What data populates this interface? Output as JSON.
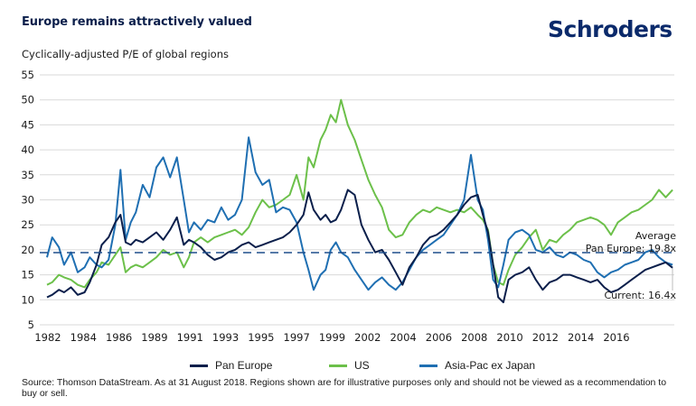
{
  "header": {
    "title": "Europe remains attractively valued",
    "logo": "Schroders",
    "subtitle": "Cyclically-adjusted P/E of global regions"
  },
  "colors": {
    "pan_europe": "#0b1f4b",
    "us": "#6cc04a",
    "asia_pac": "#1f6fb2",
    "grid": "#d9d9d9",
    "average_line": "#1f4e8c"
  },
  "legend": [
    {
      "label": "Pan Europe",
      "series": "pan_europe"
    },
    {
      "label": "US",
      "series": "us"
    },
    {
      "label": "Asia-Pac ex Japan",
      "series": "asia_pac"
    }
  ],
  "footer": {
    "source": "Source: Thomson DataStream. As at 31 August 2018. Regions shown are for illustrative purposes only and should not be viewed as a recommendation to buy or sell."
  },
  "chart_data": {
    "type": "line",
    "title": "Cyclically-adjusted P/E of global regions",
    "xlabel": "",
    "ylabel": "",
    "ylim": [
      5,
      55
    ],
    "yticks": [
      5,
      10,
      15,
      20,
      25,
      30,
      35,
      40,
      45,
      50,
      55
    ],
    "xlim": [
      1982.0,
      2018.7
    ],
    "xtick_labels": [
      "1982",
      "1984",
      "1986",
      "1989",
      "1991",
      "1993",
      "1995",
      "1997",
      "1999",
      "2002",
      "2004",
      "2006",
      "2008",
      "2010",
      "2012",
      "2014",
      "2016"
    ],
    "grid": true,
    "legend_position": "bottom",
    "reference_line": {
      "value": 19.8,
      "style": "dashed",
      "label": "Average Pan Europe: 19.8x"
    },
    "annotations": [
      {
        "text": "Average",
        "series": "reference"
      },
      {
        "text": "Pan Europe: 19.8x",
        "series": "reference"
      },
      {
        "text": "Current: 16.4x",
        "series": "pan_europe"
      }
    ],
    "series": [
      {
        "name": "Pan Europe",
        "key": "pan_europe",
        "x": [
          1982.0,
          1982.3,
          1982.7,
          1983.0,
          1983.4,
          1983.8,
          1984.2,
          1984.5,
          1984.9,
          1985.2,
          1985.6,
          1986.0,
          1986.3,
          1986.6,
          1986.9,
          1987.2,
          1987.6,
          1988.0,
          1988.4,
          1988.8,
          1989.2,
          1989.6,
          1990.0,
          1990.3,
          1990.6,
          1991.0,
          1991.4,
          1991.8,
          1992.2,
          1992.6,
          1993.0,
          1993.4,
          1993.8,
          1994.2,
          1994.6,
          1995.0,
          1995.4,
          1995.8,
          1996.2,
          1996.6,
          1997.0,
          1997.3,
          1997.6,
          1998.0,
          1998.3,
          1998.6,
          1998.9,
          1999.2,
          1999.6,
          2000.0,
          2000.4,
          2000.8,
          2001.2,
          2001.6,
          2002.0,
          2002.4,
          2002.8,
          2003.2,
          2003.6,
          2004.0,
          2004.4,
          2004.8,
          2005.2,
          2005.6,
          2006.0,
          2006.4,
          2006.8,
          2007.2,
          2007.5,
          2007.8,
          2008.1,
          2008.4,
          2008.7,
          2009.0,
          2009.4,
          2009.8,
          2010.2,
          2010.6,
          2011.0,
          2011.4,
          2011.8,
          2012.2,
          2012.6,
          2013.0,
          2013.4,
          2013.8,
          2014.2,
          2014.6,
          2015.0,
          2015.4,
          2015.8,
          2016.2,
          2016.6,
          2017.0,
          2017.4,
          2017.8,
          2018.2,
          2018.6
        ],
        "y": [
          10.5,
          11.0,
          12.0,
          11.5,
          12.5,
          11.0,
          11.5,
          13.5,
          17.0,
          21.0,
          22.5,
          25.5,
          27.0,
          21.5,
          21.0,
          22.0,
          21.5,
          22.5,
          23.5,
          22.0,
          24.0,
          26.5,
          21.0,
          22.0,
          21.5,
          20.5,
          19.0,
          18.0,
          18.5,
          19.5,
          20.0,
          21.0,
          21.5,
          20.5,
          21.0,
          21.5,
          22.0,
          22.5,
          23.5,
          25.0,
          27.0,
          31.5,
          28.0,
          26.0,
          27.0,
          25.5,
          26.0,
          28.0,
          32.0,
          31.0,
          25.0,
          22.0,
          19.5,
          20.0,
          18.0,
          15.5,
          13.0,
          16.5,
          18.5,
          21.0,
          22.5,
          23.0,
          24.0,
          25.5,
          27.0,
          29.0,
          30.5,
          31.0,
          27.0,
          23.5,
          17.0,
          10.5,
          9.5,
          14.0,
          15.0,
          15.5,
          16.5,
          14.0,
          12.0,
          13.5,
          14.0,
          15.0,
          15.0,
          14.5,
          14.0,
          13.5,
          14.0,
          12.5,
          11.5,
          12.0,
          13.0,
          14.0,
          15.0,
          16.0,
          16.5,
          17.0,
          17.5,
          16.4
        ]
      },
      {
        "name": "US",
        "key": "us",
        "x": [
          1982.0,
          1982.3,
          1982.7,
          1983.0,
          1983.4,
          1983.8,
          1984.2,
          1984.5,
          1984.9,
          1985.2,
          1985.6,
          1986.0,
          1986.3,
          1986.6,
          1986.9,
          1987.2,
          1987.6,
          1988.0,
          1988.4,
          1988.8,
          1989.2,
          1989.6,
          1990.0,
          1990.3,
          1990.6,
          1991.0,
          1991.4,
          1991.8,
          1992.2,
          1992.6,
          1993.0,
          1993.4,
          1993.8,
          1994.2,
          1994.6,
          1995.0,
          1995.4,
          1995.8,
          1996.2,
          1996.6,
          1997.0,
          1997.3,
          1997.6,
          1998.0,
          1998.3,
          1998.6,
          1998.9,
          1999.2,
          1999.6,
          2000.0,
          2000.4,
          2000.8,
          2001.2,
          2001.6,
          2002.0,
          2002.4,
          2002.8,
          2003.2,
          2003.6,
          2004.0,
          2004.4,
          2004.8,
          2005.2,
          2005.6,
          2006.0,
          2006.4,
          2006.8,
          2007.2,
          2007.5,
          2007.8,
          2008.1,
          2008.4,
          2008.7,
          2009.0,
          2009.4,
          2009.8,
          2010.2,
          2010.6,
          2011.0,
          2011.4,
          2011.8,
          2012.2,
          2012.6,
          2013.0,
          2013.4,
          2013.8,
          2014.2,
          2014.6,
          2015.0,
          2015.4,
          2015.8,
          2016.2,
          2016.6,
          2017.0,
          2017.4,
          2017.8,
          2018.2,
          2018.6
        ],
        "y": [
          13.0,
          13.5,
          15.0,
          14.5,
          14.0,
          13.0,
          12.5,
          14.0,
          15.5,
          17.5,
          17.0,
          19.0,
          20.5,
          15.5,
          16.5,
          17.0,
          16.5,
          17.5,
          18.5,
          20.0,
          19.0,
          19.5,
          16.5,
          18.5,
          21.5,
          22.5,
          21.5,
          22.5,
          23.0,
          23.5,
          24.0,
          23.0,
          24.5,
          27.5,
          30.0,
          28.5,
          29.0,
          30.0,
          31.0,
          35.0,
          30.0,
          38.5,
          36.5,
          42.0,
          44.0,
          47.0,
          45.5,
          50.0,
          45.0,
          42.0,
          38.0,
          34.0,
          31.0,
          28.5,
          24.0,
          22.5,
          23.0,
          25.5,
          27.0,
          28.0,
          27.5,
          28.5,
          28.0,
          27.5,
          28.0,
          27.5,
          28.5,
          27.0,
          26.0,
          24.0,
          17.0,
          13.5,
          13.0,
          16.0,
          19.0,
          20.5,
          22.5,
          24.0,
          20.0,
          22.0,
          21.5,
          23.0,
          24.0,
          25.5,
          26.0,
          26.5,
          26.0,
          25.0,
          23.0,
          25.5,
          26.5,
          27.5,
          28.0,
          29.0,
          30.0,
          32.0,
          30.5,
          32.0
        ]
      },
      {
        "name": "Asia-Pac ex Japan",
        "key": "asia_pac",
        "x": [
          1982.0,
          1982.3,
          1982.7,
          1983.0,
          1983.4,
          1983.8,
          1984.2,
          1984.5,
          1984.9,
          1985.2,
          1985.6,
          1986.0,
          1986.3,
          1986.6,
          1986.9,
          1987.2,
          1987.6,
          1988.0,
          1988.4,
          1988.8,
          1989.2,
          1989.6,
          1990.0,
          1990.3,
          1990.6,
          1991.0,
          1991.4,
          1991.8,
          1992.2,
          1992.6,
          1993.0,
          1993.4,
          1993.8,
          1994.2,
          1994.6,
          1995.0,
          1995.4,
          1995.8,
          1996.2,
          1996.6,
          1997.0,
          1997.3,
          1997.6,
          1998.0,
          1998.3,
          1998.6,
          1998.9,
          1999.2,
          1999.6,
          2000.0,
          2000.4,
          2000.8,
          2001.2,
          2001.6,
          2002.0,
          2002.4,
          2002.8,
          2003.2,
          2003.6,
          2004.0,
          2004.4,
          2004.8,
          2005.2,
          2005.6,
          2006.0,
          2006.4,
          2006.8,
          2007.2,
          2007.5,
          2007.8,
          2008.1,
          2008.4,
          2008.7,
          2009.0,
          2009.4,
          2009.8,
          2010.2,
          2010.6,
          2011.0,
          2011.4,
          2011.8,
          2012.2,
          2012.6,
          2013.0,
          2013.4,
          2013.8,
          2014.2,
          2014.6,
          2015.0,
          2015.4,
          2015.8,
          2016.2,
          2016.6,
          2017.0,
          2017.4,
          2017.8,
          2018.2,
          2018.6
        ],
        "y": [
          18.5,
          22.5,
          20.5,
          17.0,
          19.5,
          15.5,
          16.5,
          18.5,
          17.0,
          16.5,
          18.0,
          25.0,
          36.0,
          22.0,
          25.5,
          27.5,
          33.0,
          30.5,
          36.5,
          38.5,
          34.5,
          38.5,
          30.0,
          23.5,
          25.5,
          24.0,
          26.0,
          25.5,
          28.5,
          26.0,
          27.0,
          30.0,
          42.5,
          35.5,
          33.0,
          34.0,
          27.5,
          28.5,
          28.0,
          25.5,
          19.5,
          16.0,
          12.0,
          15.0,
          16.0,
          20.0,
          21.5,
          19.5,
          18.5,
          16.0,
          14.0,
          12.0,
          13.5,
          14.5,
          13.0,
          12.0,
          13.5,
          16.0,
          18.5,
          20.0,
          21.0,
          22.0,
          23.0,
          25.0,
          27.0,
          30.0,
          39.0,
          30.0,
          28.0,
          22.0,
          14.0,
          12.5,
          17.0,
          22.0,
          23.5,
          24.0,
          23.0,
          20.0,
          19.5,
          20.5,
          19.0,
          18.5,
          19.5,
          19.0,
          18.0,
          17.5,
          15.5,
          14.5,
          15.5,
          16.0,
          17.0,
          17.5,
          18.0,
          19.5,
          20.0,
          18.5,
          17.5,
          17.0
        ]
      }
    ]
  }
}
